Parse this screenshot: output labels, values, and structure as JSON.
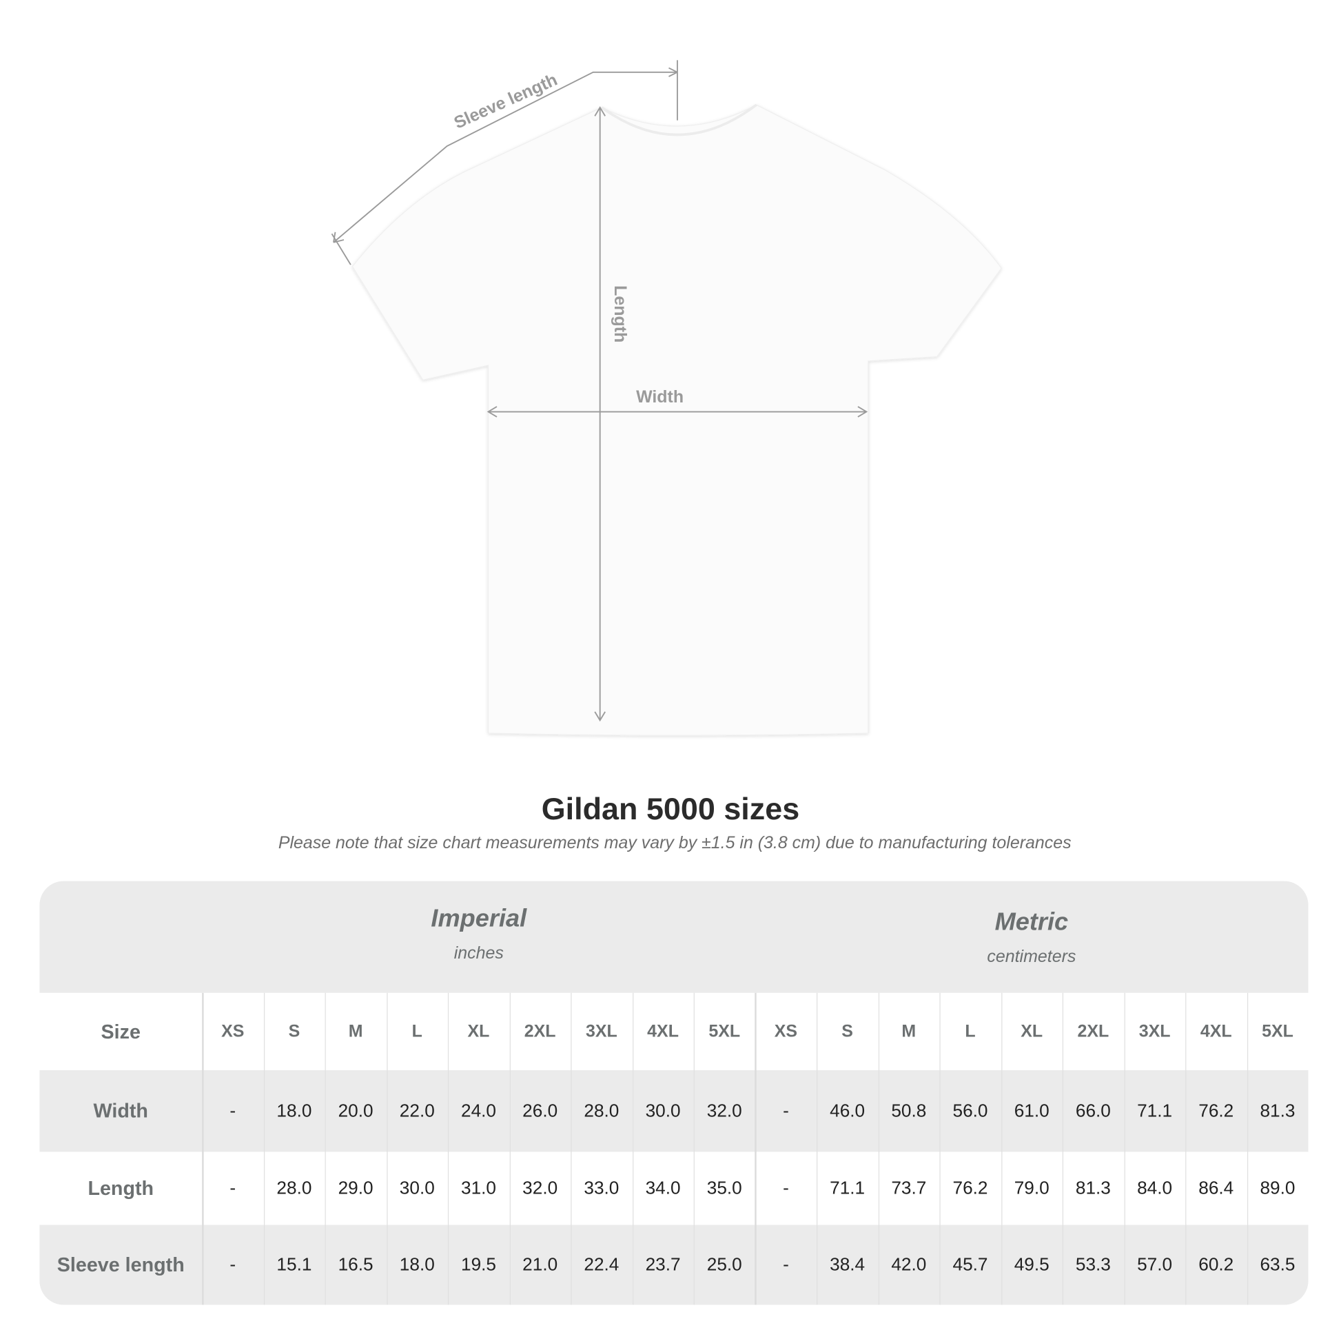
{
  "diagram": {
    "labels": {
      "sleeve": "Sleeve length",
      "length": "Length",
      "width": "Width"
    }
  },
  "title": "Gildan 5000 sizes",
  "note": "Please note that size chart measurements may vary by ±1.5 in (3.8 cm) due to manufacturing tolerances",
  "table": {
    "imperial": {
      "name": "Imperial",
      "unit": "inches"
    },
    "metric": {
      "name": "Metric",
      "unit": "centimeters"
    },
    "size_label": "Size",
    "sizes": [
      "XS",
      "S",
      "M",
      "L",
      "XL",
      "2XL",
      "3XL",
      "4XL",
      "5XL",
      "XS",
      "S",
      "M",
      "L",
      "XL",
      "2XL",
      "3XL",
      "4XL",
      "5XL"
    ],
    "rows": [
      {
        "label": "Width",
        "values": [
          "-",
          "18.0",
          "20.0",
          "22.0",
          "24.0",
          "26.0",
          "28.0",
          "30.0",
          "32.0",
          "-",
          "46.0",
          "50.8",
          "56.0",
          "61.0",
          "66.0",
          "71.1",
          "76.2",
          "81.3"
        ]
      },
      {
        "label": "Length",
        "values": [
          "-",
          "28.0",
          "29.0",
          "30.0",
          "31.0",
          "32.0",
          "33.0",
          "34.0",
          "35.0",
          "-",
          "71.1",
          "73.7",
          "76.2",
          "79.0",
          "81.3",
          "84.0",
          "86.4",
          "89.0"
        ]
      },
      {
        "label": "Sleeve length",
        "values": [
          "-",
          "15.1",
          "16.5",
          "18.0",
          "19.5",
          "21.0",
          "22.4",
          "23.7",
          "25.0",
          "-",
          "38.4",
          "42.0",
          "45.7",
          "49.5",
          "53.3",
          "57.0",
          "60.2",
          "63.5"
        ]
      }
    ]
  },
  "colors": {
    "band": "#ebebeb",
    "label": "#6b6f70",
    "measure": "#9a9a9a"
  }
}
